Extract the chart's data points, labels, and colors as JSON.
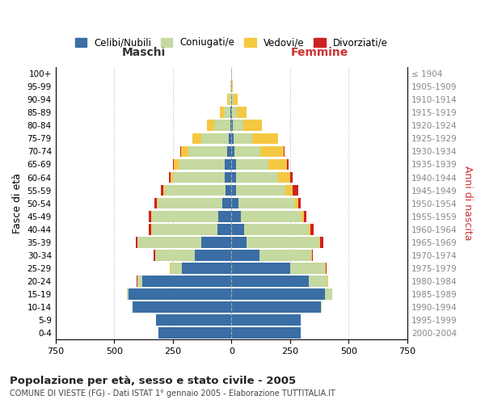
{
  "age_groups": [
    "0-4",
    "5-9",
    "10-14",
    "15-19",
    "20-24",
    "25-29",
    "30-34",
    "35-39",
    "40-44",
    "45-49",
    "50-54",
    "55-59",
    "60-64",
    "65-69",
    "70-74",
    "75-79",
    "80-84",
    "85-89",
    "90-94",
    "95-99",
    "100+"
  ],
  "birth_years": [
    "2000-2004",
    "1995-1999",
    "1990-1994",
    "1985-1989",
    "1980-1984",
    "1975-1979",
    "1970-1974",
    "1965-1969",
    "1960-1964",
    "1955-1959",
    "1950-1954",
    "1945-1949",
    "1940-1944",
    "1935-1939",
    "1930-1934",
    "1925-1929",
    "1920-1924",
    "1915-1919",
    "1910-1914",
    "1905-1909",
    "≤ 1904"
  ],
  "males": {
    "celibi": [
      310,
      320,
      420,
      440,
      380,
      210,
      155,
      130,
      60,
      55,
      40,
      25,
      30,
      30,
      20,
      10,
      5,
      3,
      2,
      0,
      0
    ],
    "coniugati": [
      0,
      0,
      2,
      5,
      20,
      50,
      170,
      270,
      280,
      285,
      275,
      260,
      220,
      195,
      165,
      120,
      70,
      30,
      10,
      3,
      2
    ],
    "vedovi": [
      0,
      0,
      0,
      0,
      2,
      2,
      1,
      2,
      2,
      2,
      3,
      5,
      10,
      20,
      30,
      35,
      30,
      15,
      5,
      1,
      0
    ],
    "divorziati": [
      0,
      0,
      0,
      0,
      1,
      2,
      5,
      5,
      10,
      12,
      10,
      10,
      8,
      5,
      3,
      2,
      1,
      1,
      0,
      0,
      0
    ]
  },
  "females": {
    "nubili": [
      295,
      295,
      380,
      400,
      330,
      250,
      120,
      65,
      55,
      40,
      30,
      20,
      20,
      18,
      12,
      8,
      5,
      3,
      2,
      0,
      0
    ],
    "coniugate": [
      0,
      2,
      5,
      30,
      80,
      150,
      220,
      310,
      275,
      260,
      240,
      210,
      180,
      140,
      110,
      80,
      45,
      20,
      8,
      3,
      2
    ],
    "vedove": [
      0,
      0,
      0,
      0,
      1,
      2,
      2,
      3,
      5,
      8,
      15,
      30,
      50,
      80,
      100,
      110,
      80,
      40,
      15,
      3,
      1
    ],
    "divorziate": [
      0,
      0,
      0,
      0,
      1,
      3,
      5,
      15,
      15,
      12,
      10,
      25,
      10,
      5,
      5,
      2,
      1,
      1,
      0,
      0,
      0
    ]
  },
  "colors": {
    "celibi_nubili": "#3a6ea5",
    "coniugati": "#c5d9a0",
    "vedovi": "#f5c842",
    "divorziati": "#cc2222"
  },
  "title_main": "Popolazione per età, sesso e stato civile - 2005",
  "title_sub": "COMUNE DI VIESTE (FG) - Dati ISTAT 1° gennaio 2005 - Elaborazione TUTTITALIA.IT",
  "xlabel_left": "Maschi",
  "xlabel_right": "Femmine",
  "ylabel_left": "Fasce di età",
  "ylabel_right": "Anni di nascita",
  "xlim": 750,
  "background": "#ffffff",
  "grid_color": "#cccccc"
}
